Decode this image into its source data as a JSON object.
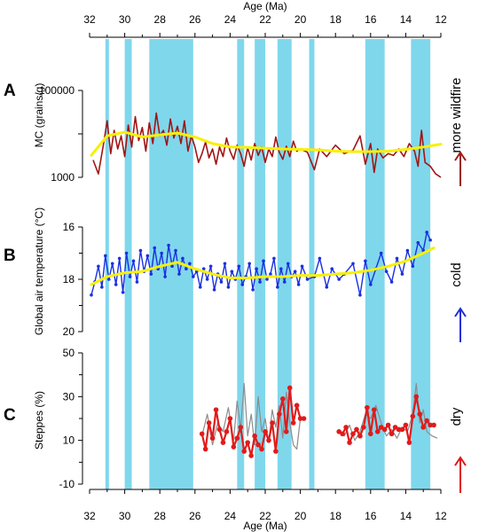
{
  "chart_data": {
    "type": "line",
    "x_axis": {
      "label": "Age (Ma)",
      "ticks": [
        32,
        30,
        28,
        26,
        24,
        22,
        20,
        18,
        16,
        14,
        12
      ],
      "range": [
        32,
        12
      ],
      "reversed": true,
      "shown": "top and bottom"
    },
    "shaded_intervals_ma": [
      [
        31.1,
        30.9
      ],
      [
        30.0,
        29.6
      ],
      [
        28.6,
        26.1
      ],
      [
        23.6,
        23.2
      ],
      [
        22.6,
        22.0
      ],
      [
        21.3,
        20.5
      ],
      [
        19.5,
        19.2
      ],
      [
        16.3,
        15.2
      ],
      [
        13.7,
        12.6
      ]
    ],
    "shade_color": "#7fd7ec",
    "panels": [
      {
        "letter": "A",
        "ylabel": "MC (grains/g)",
        "yscale": "log",
        "yticks": [
          1000,
          100000
        ],
        "ylim": [
          1000,
          100000
        ],
        "side_label": "more wildfire",
        "direction_color": "#9b1c1c",
        "series": [
          {
            "color": "#a01515",
            "width": 1.6,
            "x": [
              31.8,
              31.5,
              31.2,
              31.0,
              30.8,
              30.6,
              30.4,
              30.2,
              30.0,
              29.8,
              29.6,
              29.4,
              29.2,
              29.0,
              28.8,
              28.6,
              28.4,
              28.2,
              28.0,
              27.8,
              27.6,
              27.4,
              27.2,
              27.0,
              26.8,
              26.6,
              26.4,
              26.2,
              26.0,
              25.8,
              25.6,
              25.4,
              25.2,
              25.0,
              24.8,
              24.6,
              24.4,
              24.2,
              24.0,
              23.8,
              23.6,
              23.4,
              23.2,
              23.0,
              22.8,
              22.6,
              22.4,
              22.2,
              22.0,
              21.8,
              21.6,
              21.4,
              21.2,
              21.0,
              20.8,
              20.6,
              20.4,
              20.2,
              20.0,
              19.6,
              19.2,
              18.9,
              18.5,
              18.0,
              17.5,
              17.0,
              16.6,
              16.3,
              16.0,
              15.8,
              15.6,
              15.3,
              15.0,
              14.7,
              14.4,
              14.1,
              13.8,
              13.5,
              13.3,
              13.1,
              12.9,
              12.6,
              12.3,
              12.0
            ],
            "y": [
              2500,
              1200,
              6000,
              20000,
              3500,
              12000,
              4500,
              9000,
              3000,
              16000,
              5000,
              25000,
              7000,
              14000,
              4000,
              18000,
              6000,
              30000,
              9000,
              12000,
              5500,
              22000,
              8000,
              15000,
              6000,
              20000,
              4000,
              9000,
              5000,
              2200,
              3500,
              6500,
              2800,
              4500,
              2000,
              5000,
              3000,
              8000,
              4000,
              2600,
              5500,
              3500,
              1800,
              4800,
              2500,
              6000,
              3200,
              5000,
              2200,
              4500,
              3000,
              8500,
              3800,
              2600,
              5200,
              3000,
              6800,
              4000,
              4500,
              3800,
              1500,
              4500,
              3000,
              5500,
              3500,
              4200,
              9000,
              2000,
              6000,
              1300,
              4500,
              2800,
              3500,
              3200,
              4500,
              3000,
              6000,
              4000,
              1800,
              12000,
              2200,
              1800,
              1200,
              1000
            ]
          }
        ],
        "trend": {
          "color": "#f7f000",
          "width": 3,
          "x": [
            31.9,
            31.0,
            30.0,
            29.0,
            28.0,
            27.0,
            26.0,
            25.0,
            24.0,
            23.0,
            22.0,
            21.0,
            20.0,
            19.0,
            18.0,
            17.0,
            16.0,
            15.0,
            14.0,
            13.0,
            12.0
          ],
          "y": [
            3200,
            9000,
            11000,
            8500,
            9500,
            10500,
            8500,
            6000,
            5000,
            4900,
            4700,
            4500,
            4400,
            4300,
            4000,
            3900,
            3900,
            4000,
            4400,
            5000,
            5800
          ]
        }
      },
      {
        "letter": "B",
        "ylabel": "Global air temperature (°C)",
        "yscale": "linear",
        "yticks": [
          16,
          18,
          20
        ],
        "ylim": [
          20,
          16
        ],
        "reversed": true,
        "side_label": "cold",
        "direction_color": "#1c2fd6",
        "series": [
          {
            "color": "#1a30e0",
            "width": 1.4,
            "markers": true,
            "x": [
              31.9,
              31.7,
              31.5,
              31.3,
              31.1,
              30.9,
              30.7,
              30.5,
              30.3,
              30.1,
              29.9,
              29.7,
              29.5,
              29.3,
              29.1,
              28.9,
              28.7,
              28.5,
              28.3,
              28.1,
              27.9,
              27.7,
              27.5,
              27.3,
              27.1,
              26.9,
              26.7,
              26.5,
              26.3,
              26.1,
              25.9,
              25.7,
              25.5,
              25.3,
              25.1,
              24.9,
              24.7,
              24.5,
              24.3,
              24.1,
              23.9,
              23.7,
              23.5,
              23.3,
              23.1,
              22.9,
              22.7,
              22.5,
              22.3,
              22.1,
              21.9,
              21.7,
              21.5,
              21.3,
              21.1,
              20.9,
              20.7,
              20.5,
              20.3,
              20.1,
              19.9,
              19.6,
              19.2,
              18.9,
              18.5,
              18.2,
              17.8,
              17.5,
              17.0,
              16.6,
              16.3,
              16.0,
              15.7,
              15.4,
              15.1,
              14.8,
              14.5,
              14.2,
              13.9,
              13.6,
              13.3,
              13.0,
              12.8,
              12.6
            ],
            "y": [
              18.6,
              18.1,
              17.5,
              18.3,
              17.1,
              18.0,
              17.4,
              18.2,
              17.2,
              18.5,
              17.0,
              17.9,
              17.3,
              18.1,
              16.9,
              17.7,
              17.1,
              17.8,
              16.8,
              17.6,
              17.0,
              17.9,
              16.7,
              17.5,
              16.9,
              17.8,
              17.2,
              17.6,
              17.4,
              17.9,
              17.7,
              18.3,
              17.6,
              18.0,
              17.5,
              18.4,
              17.8,
              18.1,
              17.4,
              18.3,
              17.7,
              18.0,
              17.5,
              18.2,
              17.9,
              17.4,
              18.4,
              17.6,
              18.1,
              17.3,
              18.0,
              17.8,
              17.2,
              18.3,
              17.6,
              18.1,
              17.4,
              17.9,
              17.7,
              18.2,
              17.5,
              18.0,
              17.9,
              17.2,
              18.3,
              17.6,
              18.0,
              17.8,
              17.4,
              18.6,
              17.3,
              18.2,
              17.6,
              17.0,
              17.7,
              18.1,
              17.2,
              17.8,
              16.9,
              17.5,
              16.6,
              16.9,
              16.2,
              16.5
            ]
          }
        ],
        "trend": {
          "color": "#f7f000",
          "width": 3,
          "x": [
            31.9,
            31.0,
            30.0,
            29.0,
            28.0,
            27.0,
            26.0,
            25.0,
            24.0,
            23.0,
            22.0,
            21.0,
            20.0,
            19.0,
            18.0,
            17.0,
            16.0,
            15.0,
            14.0,
            13.0,
            12.4
          ],
          "y": [
            18.2,
            17.9,
            17.75,
            17.7,
            17.5,
            17.35,
            17.6,
            17.8,
            17.95,
            17.95,
            17.9,
            17.9,
            17.85,
            17.85,
            17.8,
            17.75,
            17.65,
            17.5,
            17.3,
            17.0,
            16.8
          ]
        }
      },
      {
        "letter": "C",
        "ylabel": "Steppes (%)",
        "yscale": "linear",
        "yticks": [
          -10,
          10,
          30,
          50
        ],
        "ylim": [
          -10,
          50
        ],
        "side_label": "dry",
        "direction_color": "#e01414",
        "series": [
          {
            "color": "#8c8c8c",
            "width": 1.2,
            "x": [
              25.6,
              25.3,
              25.0,
              24.7,
              24.4,
              24.1,
              23.8,
              23.6,
              23.4,
              23.2,
              23.0,
              22.8,
              22.6,
              22.4,
              22.2,
              22.0,
              21.8,
              21.6,
              21.4,
              21.2,
              21.0,
              20.8,
              20.6,
              20.4,
              20.2,
              20.0
            ],
            "y": [
              12,
              22,
              8,
              18,
              14,
              25,
              10,
              28,
              15,
              36,
              12,
              22,
              8,
              30,
              14,
              20,
              9,
              24,
              16,
              26,
              11,
              32,
              18,
              8,
              6,
              20
            ]
          },
          {
            "color": "#8c8c8c",
            "width": 1.2,
            "x": [
              17.8,
              17.5,
              17.2,
              16.9,
              16.6,
              16.3,
              16.0,
              15.7,
              15.4,
              15.1,
              14.8,
              14.5,
              14.2,
              13.9,
              13.6,
              13.4,
              13.2,
              13.0,
              12.8,
              12.5,
              12.2
            ],
            "y": [
              14,
              12,
              17,
              10,
              14,
              22,
              20,
              26,
              18,
              12,
              15,
              11,
              16,
              14,
              22,
              36,
              18,
              24,
              14,
              12,
              11
            ]
          },
          {
            "color": "#e11b1b",
            "width": 2.2,
            "markers": true,
            "x": [
              25.6,
              25.4,
              25.2,
              25.0,
              24.8,
              24.6,
              24.4,
              24.2,
              24.0,
              23.8,
              23.6,
              23.4,
              23.2,
              23.0,
              22.8,
              22.6,
              22.4,
              22.2,
              22.0,
              21.8,
              21.6,
              21.4,
              21.2,
              21.0,
              20.8,
              20.6,
              20.4,
              20.2,
              20.0,
              19.8
            ],
            "y": [
              13,
              6,
              18,
              11,
              24,
              15,
              9,
              14,
              20,
              7,
              11,
              16,
              5,
              9,
              3,
              12,
              8,
              6,
              14,
              10,
              18,
              5,
              22,
              29,
              14,
              34,
              18,
              26,
              20,
              20
            ]
          },
          {
            "color": "#e11b1b",
            "width": 2.2,
            "markers": true,
            "x": [
              17.8,
              17.6,
              17.4,
              17.2,
              17.0,
              16.8,
              16.6,
              16.4,
              16.2,
              16.0,
              15.8,
              15.6,
              15.4,
              15.2,
              15.0,
              14.8,
              14.6,
              14.4,
              14.2,
              14.0,
              13.8,
              13.6,
              13.4,
              13.2,
              13.0,
              12.8,
              12.6,
              12.4
            ],
            "y": [
              14,
              13,
              16,
              9,
              13,
              15,
              12,
              16,
              25,
              13,
              24,
              14,
              16,
              15,
              17,
              13,
              16,
              15,
              15,
              17,
              9,
              21,
              30,
              22,
              16,
              19,
              17,
              17
            ]
          }
        ]
      }
    ]
  }
}
